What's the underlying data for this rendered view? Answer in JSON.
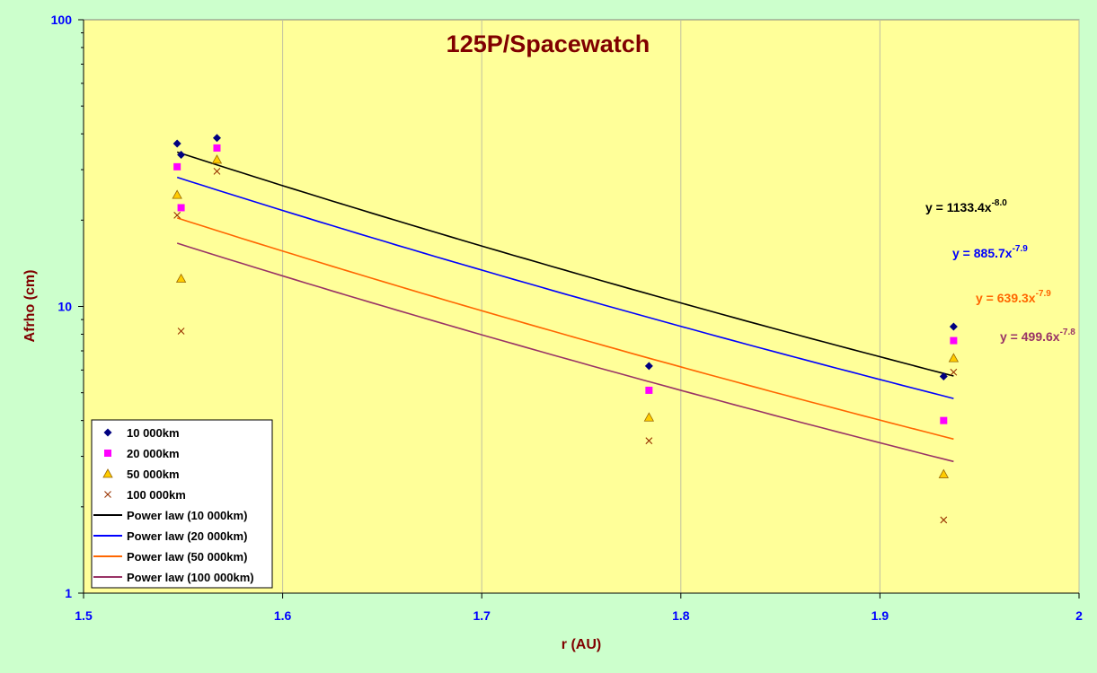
{
  "chart_data": {
    "type": "scatter",
    "title": "125P/Spacewatch",
    "xlabel": "r (AU)",
    "ylabel": "Afrho (cm)",
    "xlim": [
      1.5,
      2.0
    ],
    "ylim": [
      1,
      100
    ],
    "yscale": "log",
    "xticks": [
      "1.5",
      "1.6",
      "1.7",
      "1.8",
      "1.9",
      "2"
    ],
    "yticks": [
      "1",
      "10",
      "100"
    ],
    "grid": "vertical",
    "legend_position": "bottom-left",
    "series": [
      {
        "name": "10 000km",
        "marker": "diamond",
        "color": "#000080",
        "points": [
          [
            1.547,
            37.0
          ],
          [
            1.549,
            33.8
          ],
          [
            1.567,
            38.7
          ],
          [
            1.784,
            6.2
          ],
          [
            1.932,
            5.7
          ],
          [
            1.937,
            8.5
          ]
        ]
      },
      {
        "name": "20 000km",
        "marker": "square",
        "color": "#ff00ff",
        "points": [
          [
            1.547,
            30.7
          ],
          [
            1.549,
            22.1
          ],
          [
            1.567,
            35.7
          ],
          [
            1.784,
            5.1
          ],
          [
            1.932,
            4.0
          ],
          [
            1.937,
            7.6
          ]
        ]
      },
      {
        "name": "50 000km",
        "marker": "triangle",
        "color": "#ffcc00",
        "points": [
          [
            1.547,
            24.5
          ],
          [
            1.549,
            12.5
          ],
          [
            1.567,
            32.5
          ],
          [
            1.784,
            4.1
          ],
          [
            1.932,
            2.6
          ],
          [
            1.937,
            6.6
          ]
        ]
      },
      {
        "name": "100 000km",
        "marker": "x",
        "color": "#993300",
        "points": [
          [
            1.547,
            20.8
          ],
          [
            1.549,
            8.2
          ],
          [
            1.567,
            29.6
          ],
          [
            1.784,
            3.4
          ],
          [
            1.932,
            1.8
          ],
          [
            1.937,
            5.9
          ]
        ]
      }
    ],
    "trendlines": [
      {
        "name": "Power law (10 000km)",
        "color": "#000000",
        "a": 1133.4,
        "b": -8.0,
        "x_range": [
          1.547,
          1.937
        ],
        "label": "y = 1133.4x",
        "exponent": "-8.0"
      },
      {
        "name": "Power law (20 000km)",
        "color": "#0000ff",
        "a": 885.7,
        "b": -7.9,
        "x_range": [
          1.547,
          1.937
        ],
        "label": "y = 885.7x",
        "exponent": "-7.9"
      },
      {
        "name": "Power law (50 000km)",
        "color": "#ff6600",
        "a": 639.3,
        "b": -7.9,
        "x_range": [
          1.547,
          1.937
        ],
        "label": "y = 639.3x",
        "exponent": "-7.9"
      },
      {
        "name": "Power law (100 000km)",
        "color": "#993366",
        "a": 499.6,
        "b": -7.8,
        "x_range": [
          1.547,
          1.937
        ],
        "label": "y = 499.6x",
        "exponent": "-7.8"
      }
    ]
  }
}
